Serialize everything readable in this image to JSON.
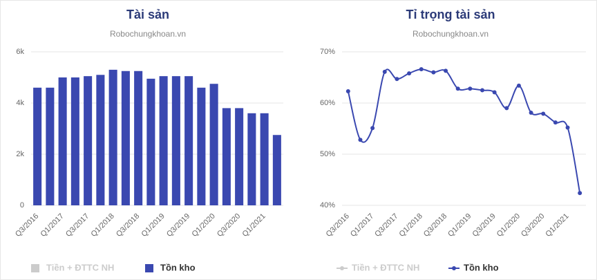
{
  "chart_data": [
    {
      "type": "bar",
      "title": "Tài sản",
      "subtitle": "Robochungkhoan.vn",
      "categories": [
        "Q3/2016",
        null,
        "Q1/2017",
        null,
        "Q3/2017",
        null,
        "Q1/2018",
        null,
        "Q3/2018",
        null,
        "Q1/2019",
        null,
        "Q3/2019",
        null,
        "Q1/2020",
        null,
        "Q3/2020",
        null,
        "Q1/2021",
        null
      ],
      "series": [
        {
          "name": "Tiền + ĐTTC NH",
          "color": "#cccccc",
          "visible": false
        },
        {
          "name": "Tồn kho",
          "color": "#3a48b0",
          "values": [
            4600,
            4600,
            5000,
            5000,
            5050,
            5100,
            5300,
            5250,
            5250,
            4950,
            5050,
            5050,
            5050,
            4600,
            4750,
            3800,
            3800,
            3600,
            3600,
            2750
          ]
        }
      ],
      "ylim": [
        0,
        6000
      ],
      "yticks": [
        0,
        {
          "value": 2000,
          "label": "2k"
        },
        {
          "value": 4000,
          "label": "4k"
        },
        {
          "value": 6000,
          "label": "6k"
        }
      ],
      "grid": true
    },
    {
      "type": "line",
      "title": "Tỉ trọng tài sản",
      "subtitle": "Robochungkhoan.vn",
      "categories": [
        "Q3/2016",
        null,
        "Q1/2017",
        null,
        "Q3/2017",
        null,
        "Q1/2018",
        null,
        "Q3/2018",
        null,
        "Q1/2019",
        null,
        "Q3/2019",
        null,
        "Q1/2020",
        null,
        "Q3/2020",
        null,
        "Q1/2021",
        null
      ],
      "series": [
        {
          "name": "Tiền + ĐTTC NH",
          "color": "#cccccc",
          "visible": false
        },
        {
          "name": "Tồn kho",
          "color": "#3a48b0",
          "values": [
            62.3,
            52.8,
            55.1,
            66.1,
            64.7,
            65.8,
            66.6,
            66,
            66.3,
            62.8,
            62.8,
            62.5,
            62.1,
            59,
            63.4,
            58.1,
            57.9,
            56.2,
            55.2,
            42.4
          ]
        }
      ],
      "ylim": [
        40,
        70
      ],
      "yticks": [
        {
          "value": 40,
          "label": "40%"
        },
        {
          "value": 50,
          "label": "50%"
        },
        {
          "value": 60,
          "label": "60%"
        },
        {
          "value": 70,
          "label": "70%"
        }
      ],
      "grid": true
    }
  ]
}
